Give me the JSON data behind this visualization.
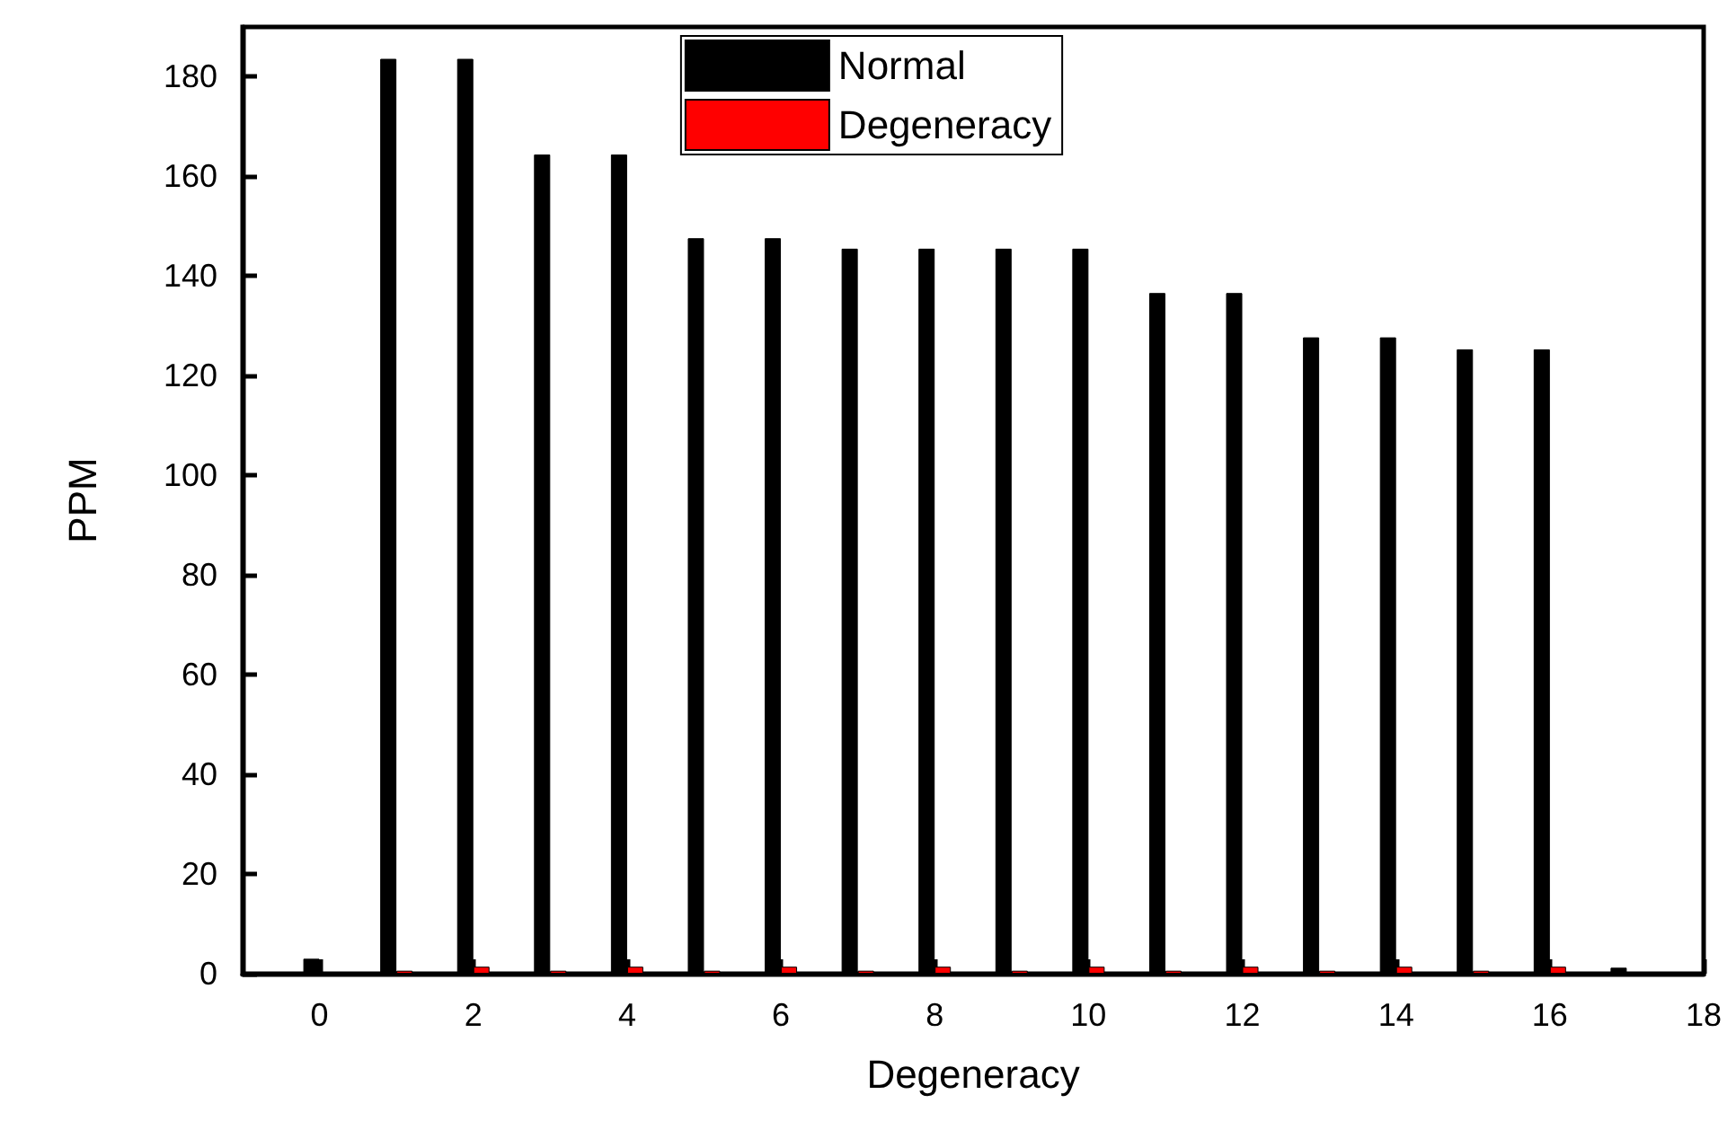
{
  "chart_data": {
    "type": "bar",
    "xlabel": "Degeneracy",
    "ylabel": "PPM",
    "x": [
      0,
      1,
      2,
      3,
      4,
      5,
      6,
      7,
      8,
      9,
      10,
      11,
      12,
      13,
      14,
      15,
      16,
      17
    ],
    "series": [
      {
        "name": "Normal",
        "color": "#000000",
        "values": [
          3,
          183.6,
          183.6,
          164.4,
          164.4,
          147.6,
          147.6,
          145.5,
          145.5,
          145.5,
          145.5,
          136.6,
          136.6,
          127.7,
          127.7,
          125.3,
          125.3,
          1.2
        ]
      },
      {
        "name": "Degeneracy",
        "color": "#ff0000",
        "values": [
          null,
          0.6,
          1.4,
          0.6,
          1.4,
          0.6,
          1.4,
          0.6,
          1.4,
          0.6,
          1.4,
          0.6,
          1.4,
          0.6,
          1.4,
          0.6,
          1.4,
          null
        ]
      }
    ],
    "xlim": [
      -1,
      18
    ],
    "xticks": [
      0,
      2,
      4,
      6,
      8,
      10,
      12,
      14,
      16,
      18
    ],
    "ylim": [
      0,
      190
    ],
    "yticks": [
      0,
      20,
      40,
      60,
      80,
      100,
      120,
      140,
      160,
      180
    ],
    "legend": "top"
  }
}
